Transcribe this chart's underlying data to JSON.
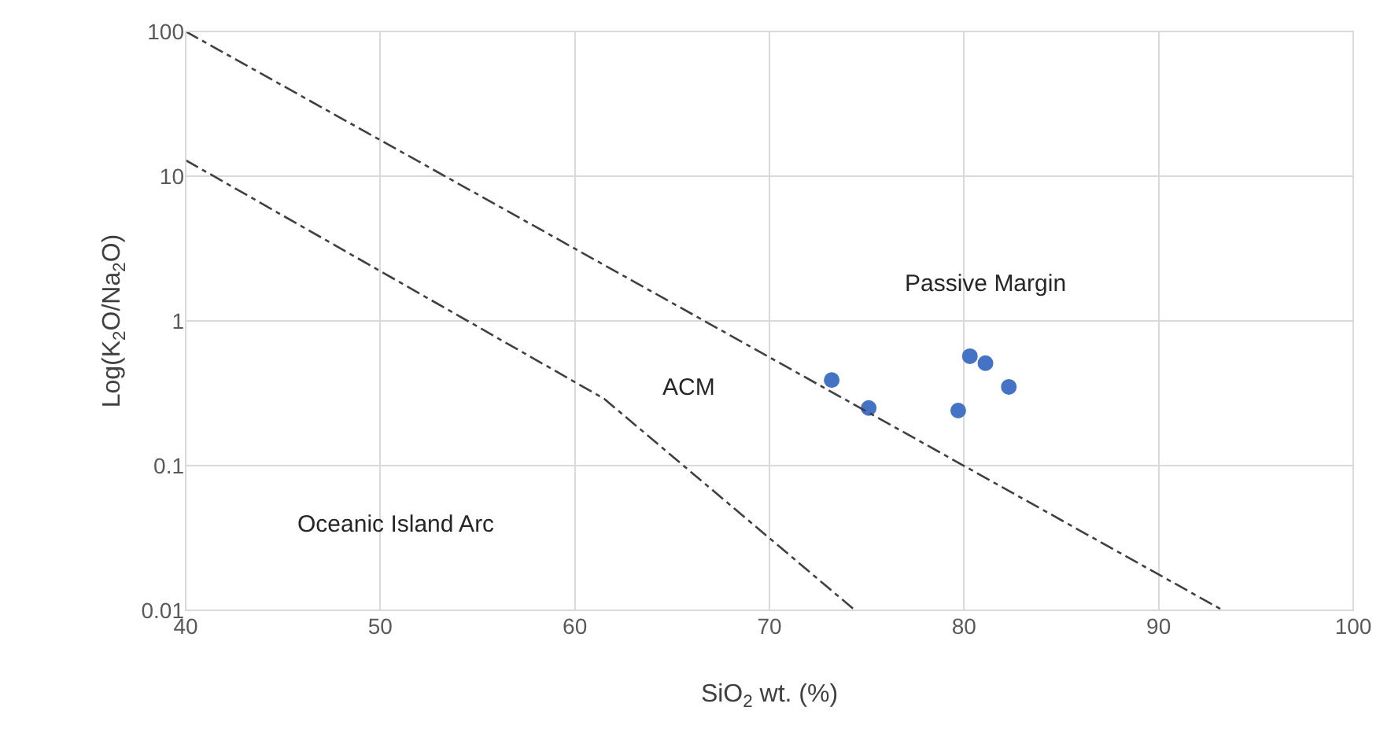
{
  "chart_data": {
    "type": "scatter",
    "xlabel": "SiO$_{2}$ wt. (%)",
    "ylabel": "Log(K$_{2}$O/Na$_{2}$O)",
    "log": "y",
    "grid": true,
    "xlim": [
      40,
      100
    ],
    "xticks": [
      40,
      50,
      60,
      70,
      80,
      90,
      100
    ],
    "ylim": [
      0.01,
      100
    ],
    "yticks": [
      0.01,
      0.1,
      1,
      10,
      100
    ],
    "series": [
      {
        "color": "#4472c4",
        "marker": "circle",
        "x": [
          73.2,
          75.1,
          79.7,
          80.3,
          81.1,
          82.3
        ],
        "values": [
          0.39,
          0.25,
          0.24,
          0.57,
          0.51,
          0.35
        ]
      },
      {
        "type": "line",
        "color": "#404040",
        "line_style": "dashed",
        "marker": "none",
        "x": [
          40,
          93.3
        ],
        "values": [
          100,
          0.01
        ]
      },
      {
        "type": "line",
        "color": "#404040",
        "line_style": "dashed",
        "marker": "none",
        "x": [
          40,
          61.5,
          74.4
        ],
        "values": [
          12.9,
          0.29,
          0.01
        ]
      }
    ],
    "annotations": [
      "Passive Margin",
      "ACM",
      "Oceanic Island Arc"
    ]
  }
}
